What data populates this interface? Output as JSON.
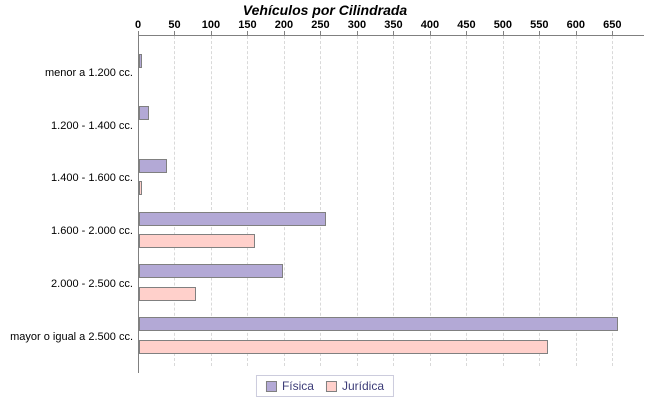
{
  "chart_data": {
    "type": "bar",
    "orientation": "horizontal",
    "title": "Vehículos por Cilindrada",
    "categories": [
      "menor a 1.200 cc.",
      "1.200 - 1.400 cc.",
      "1.400 - 1.600 cc.",
      "1.600 - 2.000 cc.",
      "2.000 - 2.500 cc.",
      "mayor o igual a 2.500 cc."
    ],
    "series": [
      {
        "name": "Física",
        "color": "#b3a9d6",
        "values": [
          4,
          14,
          39,
          256,
          197,
          657
        ]
      },
      {
        "name": "Jurídica",
        "color": "#ffd0cb",
        "values": [
          0,
          0,
          4,
          159,
          78,
          561
        ]
      }
    ],
    "x_ticks": [
      0,
      50,
      100,
      150,
      200,
      250,
      300,
      350,
      400,
      450,
      500,
      550,
      600,
      650
    ],
    "xlim": [
      0,
      650
    ],
    "grid": "vertical-dashed",
    "legend_position": "bottom",
    "colors": {
      "bar_border": "#808080",
      "axis_line": "#808080",
      "gridline": "#d9d9d9",
      "tick_label": "#000000",
      "category_label": "#000000",
      "legend_text": "#3c3c78",
      "legend_border": "#ccccdd",
      "title": "#000000",
      "background": "#ffffff"
    }
  }
}
